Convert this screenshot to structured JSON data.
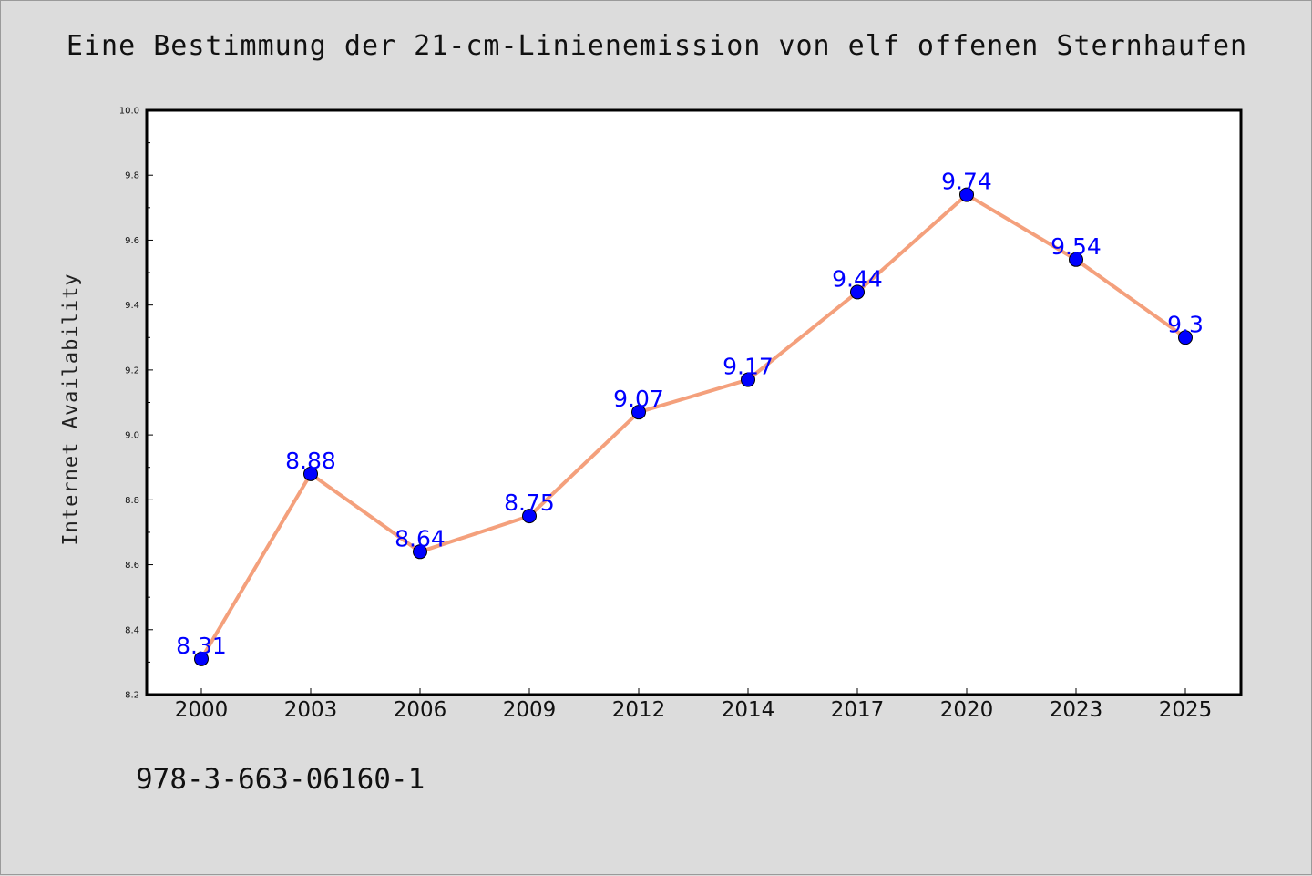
{
  "footer": {
    "code": "978-3-663-06160-1"
  },
  "colors": {
    "line": "#f4a07c",
    "marker": "#0000ff",
    "label": "#0000ff",
    "background": "#dcdcdc",
    "plot_area": "#ffffff"
  },
  "chart_data": {
    "type": "line",
    "title": "Eine Bestimmung der 21-cm-Linienemission von elf offenen Sternhaufen",
    "xlabel": "",
    "ylabel": "Internet Availability",
    "categories": [
      "2000",
      "2003",
      "2006",
      "2009",
      "2012",
      "2014",
      "2017",
      "2020",
      "2023",
      "2025"
    ],
    "series": [
      {
        "values": [
          8.31,
          8.88,
          8.64,
          8.75,
          9.07,
          9.17,
          9.44,
          9.74,
          9.54,
          9.3
        ]
      }
    ],
    "data_labels": [
      "8.31",
      "8.88",
      "8.64",
      "8.75",
      "9.07",
      "9.17",
      "9.44",
      "9.74",
      "9.54",
      "9.3"
    ],
    "ylim": [
      8.2,
      10.0
    ],
    "yticks": [
      "8.2",
      "8.4",
      "8.6",
      "8.8",
      "9.0",
      "9.2",
      "9.4",
      "9.6",
      "9.8",
      "10.0"
    ],
    "grid": false,
    "legend": "none"
  }
}
